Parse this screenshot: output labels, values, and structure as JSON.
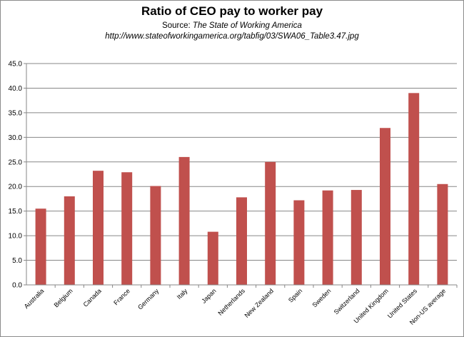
{
  "chart_data": {
    "type": "bar",
    "title": "Ratio of CEO pay to worker pay",
    "subtitle_prefix": "Source: ",
    "subtitle_source": "The State of Working America",
    "subtitle_url": "http://www.stateofworkingamerica.org/tabfig/03/SWA06_Table3.47.jpg",
    "xlabel": "",
    "ylabel": "",
    "categories": [
      "Australia",
      "Belgium",
      "Canada",
      "France",
      "Germany",
      "Italy",
      "Japan",
      "Netherlands",
      "New Zealand",
      "Spain",
      "Sweden",
      "Switzerland",
      "United Kingdom",
      "United States",
      "Non-US average"
    ],
    "values": [
      15.5,
      18.0,
      23.2,
      22.9,
      20.1,
      26.0,
      10.8,
      17.8,
      25.0,
      17.2,
      19.2,
      19.3,
      31.9,
      39.0,
      20.5
    ],
    "ylim": [
      0,
      45
    ],
    "yticks": [
      "0.0",
      "5.0",
      "10.0",
      "15.0",
      "20.0",
      "25.0",
      "30.0",
      "35.0",
      "40.0",
      "45.0"
    ],
    "grid": true,
    "legend": "none",
    "bar_color": "#c0504d",
    "grid_color": "#878787"
  }
}
